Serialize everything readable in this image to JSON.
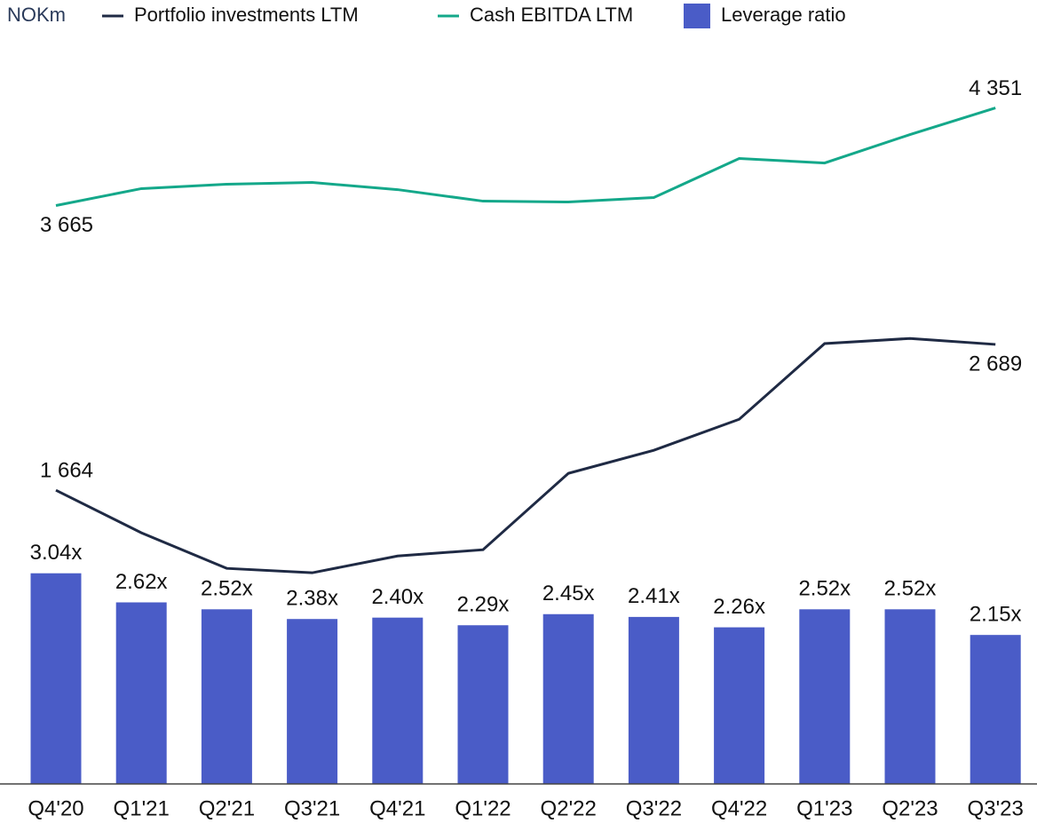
{
  "chart_data": {
    "type": "bar-line",
    "unit": "NOKm",
    "categories": [
      "Q4'20",
      "Q1'21",
      "Q2'21",
      "Q3'21",
      "Q4'21",
      "Q1'22",
      "Q2'22",
      "Q3'22",
      "Q4'22",
      "Q1'23",
      "Q2'23",
      "Q3'23"
    ],
    "series": [
      {
        "name": "Portfolio investments LTM",
        "type": "line",
        "color": "#1f2a44",
        "axis": "y",
        "values": [
          1664,
          1365,
          1115,
          1084,
          1202,
          1246,
          1783,
          1945,
          2163,
          2695,
          2731,
          2689
        ],
        "value_labels": [
          "1 664",
          null,
          null,
          null,
          null,
          null,
          null,
          null,
          null,
          null,
          null,
          "2 689"
        ]
      },
      {
        "name": "Cash EBITDA LTM",
        "type": "line",
        "color": "#14a88a",
        "axis": "y",
        "values": [
          3665,
          3784,
          3815,
          3827,
          3777,
          3696,
          3690,
          3721,
          3996,
          3964,
          4164,
          4351
        ],
        "value_labels": [
          "3 665",
          null,
          null,
          null,
          null,
          null,
          null,
          null,
          null,
          null,
          null,
          "4 351"
        ]
      },
      {
        "name": "Leverage ratio",
        "type": "bar",
        "color": "#4a5cc7",
        "axis": "y2",
        "values": [
          3.04,
          2.62,
          2.52,
          2.38,
          2.4,
          2.29,
          2.45,
          2.41,
          2.26,
          2.52,
          2.52,
          2.15
        ],
        "value_labels": [
          "3.04x",
          "2.62x",
          "2.52x",
          "2.38x",
          "2.40x",
          "2.29x",
          "2.45x",
          "2.41x",
          "2.26x",
          "2.52x",
          "2.52x",
          "2.15x"
        ]
      }
    ],
    "ylim": [
      -400,
      4860
    ],
    "y2lim": [
      0,
      10.8
    ]
  }
}
